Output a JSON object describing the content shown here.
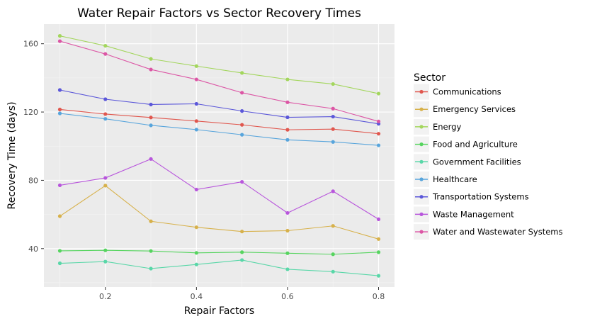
{
  "chart_data": {
    "type": "line",
    "title": "Water Repair Factors vs Sector Recovery Times",
    "xlabel": "Repair Factors",
    "ylabel": "Recovery Time (days)",
    "x": [
      0.1,
      0.2,
      0.3,
      0.4,
      0.5,
      0.6,
      0.7,
      0.8
    ],
    "xlim": [
      0.065,
      0.835
    ],
    "ylim": [
      17.5,
      171.5
    ],
    "xticks": [
      0.2,
      0.4,
      0.6,
      0.8
    ],
    "xtick_labels": [
      "0.2",
      "0.4",
      "0.6",
      "0.8"
    ],
    "yticks": [
      40,
      80,
      120,
      160
    ],
    "ytick_labels": [
      "40",
      "80",
      "120",
      "160"
    ],
    "grid": true,
    "legend": {
      "title": "Sector",
      "placement": "right"
    },
    "series": [
      {
        "name": "Communications",
        "color": "#e0574e",
        "values": [
          121.5,
          118.8,
          116.8,
          114.7,
          112.5,
          109.6,
          110.0,
          107.3
        ]
      },
      {
        "name": "Emergency Services",
        "color": "#d7b14b",
        "values": [
          59.0,
          76.9,
          56.0,
          52.5,
          50.0,
          50.5,
          53.3,
          45.6
        ]
      },
      {
        "name": "Energy",
        "color": "#a3d65d",
        "values": [
          164.6,
          158.8,
          151.1,
          146.9,
          142.9,
          139.1,
          136.4,
          130.8
        ]
      },
      {
        "name": "Food and Agriculture",
        "color": "#56d45f",
        "values": [
          38.7,
          39.0,
          38.6,
          37.5,
          37.9,
          37.3,
          36.7,
          37.9
        ]
      },
      {
        "name": "Government Facilities",
        "color": "#59d7a8",
        "values": [
          31.4,
          32.4,
          28.3,
          30.7,
          33.3,
          27.9,
          26.5,
          24.1
        ]
      },
      {
        "name": "Healthcare",
        "color": "#58a5dc",
        "values": [
          119.2,
          116.0,
          112.2,
          109.7,
          106.7,
          103.7,
          102.5,
          100.5
        ]
      },
      {
        "name": "Transportation Systems",
        "color": "#5b57d9",
        "values": [
          132.9,
          127.5,
          124.4,
          124.8,
          120.6,
          116.9,
          117.3,
          113.1
        ]
      },
      {
        "name": "Waste Management",
        "color": "#b856dc",
        "values": [
          77.1,
          81.4,
          92.5,
          74.6,
          79.1,
          60.9,
          73.6,
          57.2
        ]
      },
      {
        "name": "Water and Wastewater Systems",
        "color": "#dc56a5",
        "values": [
          161.5,
          154.0,
          144.9,
          139.1,
          131.3,
          125.7,
          122.0,
          114.5
        ]
      }
    ]
  }
}
